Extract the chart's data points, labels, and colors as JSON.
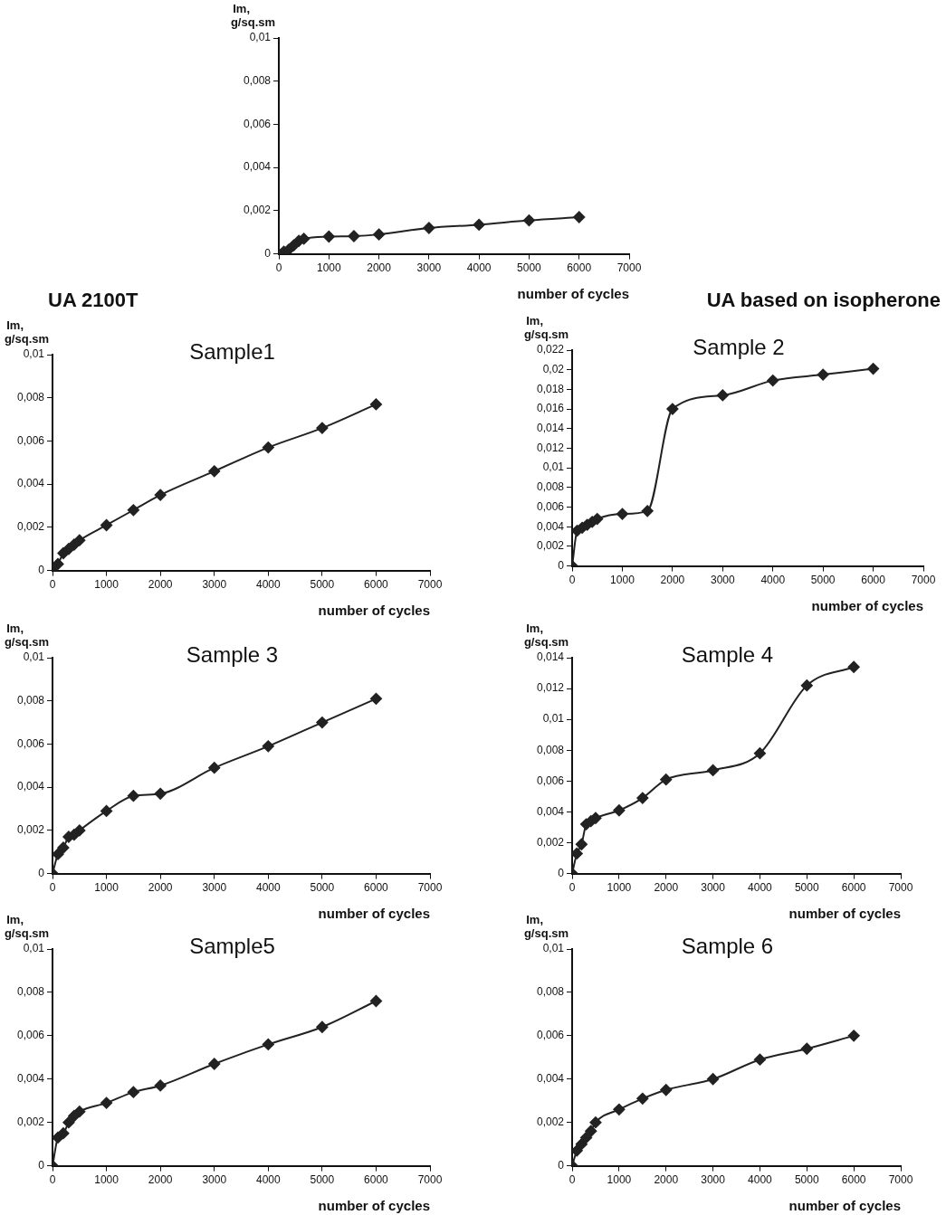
{
  "chart_data": [
    {
      "type": "line",
      "xlabel": "number of cycles",
      "ylabel": "Im, g/sq.sm",
      "marker": "diamond",
      "x": [
        0,
        100,
        200,
        300,
        400,
        500,
        1000,
        1500,
        2000,
        3000,
        4000,
        5000,
        6000
      ],
      "series": [
        {
          "color": "#222222",
          "values": [
            0,
            0.0001,
            0.0002,
            0.0004,
            0.0006,
            0.0007,
            0.0008,
            0.00082,
            0.0009,
            0.0012,
            0.00135,
            0.00155,
            0.0017
          ]
        }
      ],
      "xlim": [
        0,
        7000
      ],
      "xticks": [
        0,
        1000,
        2000,
        3000,
        4000,
        5000,
        6000,
        7000
      ],
      "ylim": [
        0,
        0.01
      ],
      "yticks": [
        {
          "value": 0,
          "label": "0"
        },
        {
          "value": 0.002,
          "label": "0,002"
        },
        {
          "value": 0.004,
          "label": "0,004"
        },
        {
          "value": 0.006,
          "label": "0,006"
        },
        {
          "value": 0.008,
          "label": "0,008"
        },
        {
          "value": 0.01,
          "label": "0,01"
        }
      ]
    },
    {
      "type": "line",
      "title": "Sample1",
      "xlabel": "number of cycles",
      "ylabel": "Im, g/sq.sm",
      "marker": "diamond",
      "annotations": [
        "UA 2100T"
      ],
      "x": [
        0,
        100,
        200,
        300,
        400,
        500,
        1000,
        1500,
        2000,
        3000,
        4000,
        5000,
        6000
      ],
      "series": [
        {
          "color": "#222222",
          "values": [
            0,
            0.0003,
            0.0008,
            0.001,
            0.0012,
            0.0014,
            0.0021,
            0.0028,
            0.0035,
            0.0046,
            0.0057,
            0.0066,
            0.0077
          ]
        }
      ],
      "xlim": [
        0,
        7000
      ],
      "xticks": [
        0,
        1000,
        2000,
        3000,
        4000,
        5000,
        6000,
        7000
      ],
      "ylim": [
        0,
        0.01
      ],
      "yticks": [
        {
          "value": 0,
          "label": "0"
        },
        {
          "value": 0.002,
          "label": "0,002"
        },
        {
          "value": 0.004,
          "label": "0,004"
        },
        {
          "value": 0.006,
          "label": "0,006"
        },
        {
          "value": 0.008,
          "label": "0,008"
        },
        {
          "value": 0.01,
          "label": "0,01"
        }
      ]
    },
    {
      "type": "line",
      "title": "Sample 2",
      "xlabel": "number of cycles",
      "ylabel": "Im, g/sq.sm",
      "marker": "diamond",
      "annotations": [
        "UA based on isopherone"
      ],
      "x": [
        0,
        100,
        200,
        300,
        400,
        500,
        1000,
        1500,
        2000,
        3000,
        4000,
        5000,
        6000
      ],
      "series": [
        {
          "color": "#222222",
          "values": [
            0,
            0.0036,
            0.0039,
            0.0042,
            0.0045,
            0.0048,
            0.0053,
            0.0056,
            0.016,
            0.0174,
            0.0189,
            0.0195,
            0.0201
          ]
        }
      ],
      "xlim": [
        0,
        7000
      ],
      "xticks": [
        0,
        1000,
        2000,
        3000,
        4000,
        5000,
        6000,
        7000
      ],
      "ylim": [
        0,
        0.022
      ],
      "yticks": [
        {
          "value": 0,
          "label": "0"
        },
        {
          "value": 0.002,
          "label": "0,002"
        },
        {
          "value": 0.004,
          "label": "0,004"
        },
        {
          "value": 0.006,
          "label": "0,006"
        },
        {
          "value": 0.008,
          "label": "0,008"
        },
        {
          "value": 0.01,
          "label": "0,01"
        },
        {
          "value": 0.012,
          "label": "0,012"
        },
        {
          "value": 0.014,
          "label": "0,014"
        },
        {
          "value": 0.016,
          "label": "0,016"
        },
        {
          "value": 0.018,
          "label": "0,018"
        },
        {
          "value": 0.02,
          "label": "0,02"
        },
        {
          "value": 0.022,
          "label": "0,022"
        }
      ]
    },
    {
      "type": "line",
      "title": "Sample 3",
      "xlabel": "number of cycles",
      "ylabel": "Im, g/sq.sm",
      "marker": "diamond",
      "x": [
        0,
        100,
        200,
        300,
        400,
        500,
        1000,
        1500,
        2000,
        3000,
        4000,
        5000,
        6000
      ],
      "series": [
        {
          "color": "#222222",
          "values": [
            0,
            0.0009,
            0.0012,
            0.0017,
            0.0018,
            0.002,
            0.0029,
            0.0036,
            0.0037,
            0.0049,
            0.0059,
            0.007,
            0.0081
          ]
        }
      ],
      "xlim": [
        0,
        7000
      ],
      "xticks": [
        0,
        1000,
        2000,
        3000,
        4000,
        5000,
        6000,
        7000
      ],
      "ylim": [
        0,
        0.01
      ],
      "yticks": [
        {
          "value": 0,
          "label": "0"
        },
        {
          "value": 0.002,
          "label": "0,002"
        },
        {
          "value": 0.004,
          "label": "0,004"
        },
        {
          "value": 0.006,
          "label": "0,006"
        },
        {
          "value": 0.008,
          "label": "0,008"
        },
        {
          "value": 0.01,
          "label": "0,01"
        }
      ]
    },
    {
      "type": "line",
      "title": "Sample 4",
      "xlabel": "number of cycles",
      "ylabel": "Im, g/sq.sm",
      "marker": "diamond",
      "x": [
        0,
        100,
        200,
        300,
        400,
        500,
        1000,
        1500,
        2000,
        3000,
        4000,
        5000,
        6000
      ],
      "series": [
        {
          "color": "#222222",
          "values": [
            0,
            0.0013,
            0.0019,
            0.0032,
            0.0034,
            0.0036,
            0.0041,
            0.0049,
            0.0061,
            0.0067,
            0.0078,
            0.0122,
            0.0134
          ]
        }
      ],
      "xlim": [
        0,
        7000
      ],
      "xticks": [
        0,
        1000,
        2000,
        3000,
        4000,
        5000,
        6000,
        7000
      ],
      "ylim": [
        0,
        0.014
      ],
      "yticks": [
        {
          "value": 0,
          "label": "0"
        },
        {
          "value": 0.002,
          "label": "0,002"
        },
        {
          "value": 0.004,
          "label": "0,004"
        },
        {
          "value": 0.006,
          "label": "0,006"
        },
        {
          "value": 0.008,
          "label": "0,008"
        },
        {
          "value": 0.01,
          "label": "0,01"
        },
        {
          "value": 0.012,
          "label": "0,012"
        },
        {
          "value": 0.014,
          "label": "0,014"
        }
      ]
    },
    {
      "type": "line",
      "title": "Sample5",
      "xlabel": "number of cycles",
      "ylabel": "Im, g/sq.sm",
      "marker": "diamond",
      "x": [
        0,
        100,
        200,
        300,
        400,
        500,
        1000,
        1500,
        2000,
        3000,
        4000,
        5000,
        6000
      ],
      "series": [
        {
          "color": "#222222",
          "values": [
            0,
            0.0013,
            0.0015,
            0.002,
            0.0023,
            0.0025,
            0.0029,
            0.0034,
            0.0037,
            0.0047,
            0.0056,
            0.0064,
            0.0076
          ]
        }
      ],
      "xlim": [
        0,
        7000
      ],
      "xticks": [
        0,
        1000,
        2000,
        3000,
        4000,
        5000,
        6000,
        7000
      ],
      "ylim": [
        0,
        0.01
      ],
      "yticks": [
        {
          "value": 0,
          "label": "0"
        },
        {
          "value": 0.002,
          "label": "0,002"
        },
        {
          "value": 0.004,
          "label": "0,004"
        },
        {
          "value": 0.006,
          "label": "0,006"
        },
        {
          "value": 0.008,
          "label": "0,008"
        },
        {
          "value": 0.01,
          "label": "0,01"
        }
      ]
    },
    {
      "type": "line",
      "title": "Sample 6",
      "xlabel": "number of cycles",
      "ylabel": "Im, g/sq.sm",
      "marker": "diamond",
      "x": [
        0,
        100,
        200,
        300,
        400,
        500,
        1000,
        1500,
        2000,
        3000,
        4000,
        5000,
        6000
      ],
      "series": [
        {
          "color": "#222222",
          "values": [
            0,
            0.0007,
            0.001,
            0.0013,
            0.0016,
            0.002,
            0.0026,
            0.0031,
            0.0035,
            0.004,
            0.0049,
            0.0054,
            0.006
          ]
        }
      ],
      "xlim": [
        0,
        7000
      ],
      "xticks": [
        0,
        1000,
        2000,
        3000,
        4000,
        5000,
        6000,
        7000
      ],
      "ylim": [
        0,
        0.01
      ],
      "yticks": [
        {
          "value": 0,
          "label": "0"
        },
        {
          "value": 0.002,
          "label": "0,002"
        },
        {
          "value": 0.004,
          "label": "0,004"
        },
        {
          "value": 0.006,
          "label": "0,006"
        },
        {
          "value": 0.008,
          "label": "0,008"
        },
        {
          "value": 0.01,
          "label": "0,01"
        }
      ]
    }
  ]
}
